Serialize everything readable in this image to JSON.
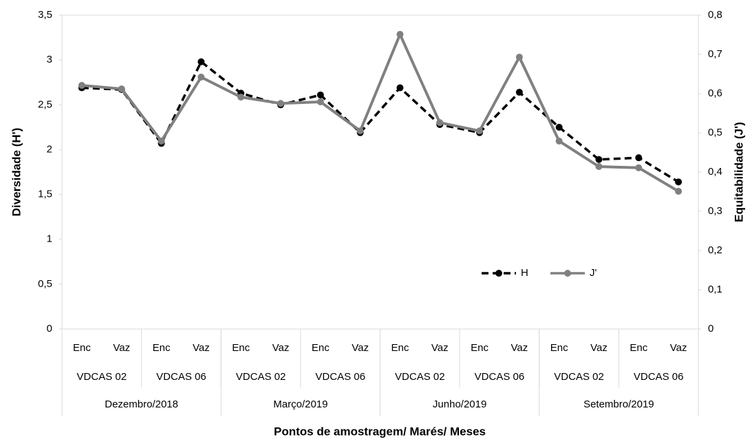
{
  "chart_data": {
    "type": "line",
    "y_label": "Diversidade (H')",
    "y2_label": "Equitabilidade (J')",
    "x_label": "Pontos de amostragem/ Marés/ Meses",
    "categories": [
      "Enc",
      "Vaz",
      "Enc",
      "Vaz",
      "Enc",
      "Vaz",
      "Enc",
      "Vaz",
      "Enc",
      "Vaz",
      "Enc",
      "Vaz",
      "Enc",
      "Vaz",
      "Enc",
      "Vaz"
    ],
    "subgroups": [
      "VDCAS 02",
      "VDCAS 06",
      "VDCAS 02",
      "VDCAS 06",
      "VDCAS 02",
      "VDCAS 06",
      "VDCAS 02",
      "VDCAS 06"
    ],
    "groups": [
      "Dezembro/2018",
      "Março/2019",
      "Junho/2019",
      "Setembro/2019"
    ],
    "series": [
      {
        "name": "H",
        "color": "#000000",
        "line_style": "dashed",
        "values": [
          2.69,
          2.67,
          2.07,
          2.98,
          2.63,
          2.5,
          2.61,
          2.19,
          2.69,
          2.28,
          2.19,
          2.64,
          2.25,
          1.89,
          1.91,
          1.64
        ]
      },
      {
        "name": "J'",
        "color": "#808080",
        "line_style": "solid",
        "axis": "y2",
        "values": [
          0.621,
          0.612,
          0.479,
          0.642,
          0.591,
          0.575,
          0.579,
          0.505,
          0.751,
          0.526,
          0.505,
          0.693,
          0.479,
          0.414,
          0.411,
          0.351
        ]
      }
    ],
    "ylim": [
      0,
      3.5
    ],
    "yticks": [
      0,
      {
        "value": 0.5,
        "label": "0,5"
      },
      1,
      {
        "value": 1.5,
        "label": "1,5"
      },
      2,
      {
        "value": 2.5,
        "label": "2,5"
      },
      3,
      {
        "value": 3.5,
        "label": "3,5"
      }
    ],
    "y2lim": [
      0,
      0.8
    ],
    "y2ticks": [
      0,
      {
        "value": 0.1,
        "label": "0,1"
      },
      {
        "value": 0.2,
        "label": "0,2"
      },
      {
        "value": 0.3,
        "label": "0,3"
      },
      {
        "value": 0.4,
        "label": "0,4"
      },
      {
        "value": 0.5,
        "label": "0,5"
      },
      {
        "value": 0.6,
        "label": "0,6"
      },
      {
        "value": 0.7,
        "label": "0,7"
      },
      {
        "value": 0.8,
        "label": "0,8"
      }
    ],
    "grid": false,
    "legend": "lower right"
  }
}
